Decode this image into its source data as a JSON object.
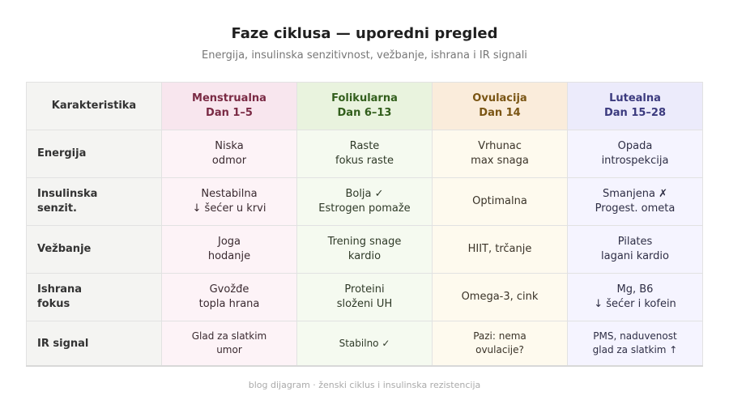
{
  "title": "Faze ciklusa — uporedni pregled",
  "subtitle": "Energija, insulinska senzitivnost, vežbanje, ishrana i IR signali",
  "table": {
    "corner": "Karakteristika",
    "phases": [
      {
        "name": "Menstrualna",
        "days": "Dan 1–5",
        "color": "#7a2a44"
      },
      {
        "name": "Folikularna",
        "days": "Dan 6–13",
        "color": "#325e1c"
      },
      {
        "name": "Ovulacija",
        "days": "Dan 14",
        "color": "#7a5514"
      },
      {
        "name": "Lutealna",
        "days": "Dan 15–28",
        "color": "#3b3a7e"
      }
    ],
    "rows": [
      {
        "label": [
          "Energija"
        ],
        "cells": [
          [
            "Niska",
            "odmor"
          ],
          [
            "Raste",
            "fokus raste"
          ],
          [
            "Vrhunac",
            "max snaga"
          ],
          [
            "Opada",
            "introspekcija"
          ]
        ]
      },
      {
        "label": [
          "Insulinska",
          "senzit."
        ],
        "cells": [
          [
            "Nestabilna",
            "↓ šećer u krvi"
          ],
          [
            "Bolja ✓",
            "Estrogen pomaže"
          ],
          [
            "Optimalna"
          ],
          [
            "Smanjena ✗",
            "Progest. ometa"
          ]
        ]
      },
      {
        "label": [
          "Vežbanje"
        ],
        "cells": [
          [
            "Joga",
            "hodanje"
          ],
          [
            "Trening snage",
            "kardio"
          ],
          [
            "HIIT, trčanje"
          ],
          [
            "Pilates",
            "lagani kardio"
          ]
        ]
      },
      {
        "label": [
          "Ishrana",
          "fokus"
        ],
        "cells": [
          [
            "Gvožđe",
            "topla hrana"
          ],
          [
            "Proteini",
            "složeni UH"
          ],
          [
            "Omega-3, cink"
          ],
          [
            "Mg, B6",
            "↓ šećer i kofein"
          ]
        ]
      },
      {
        "label": [
          "IR signal"
        ],
        "cells": [
          [
            "Glad za slatkim",
            "umor"
          ],
          [
            "Stabilno ✓"
          ],
          [
            "Pazi: nema",
            "ovulacije?"
          ],
          [
            "PMS, naduvenost",
            "glad za slatkim ↑"
          ]
        ]
      }
    ]
  },
  "footer": "blog dijagram · ženski ciklus i insulinska rezistencija"
}
